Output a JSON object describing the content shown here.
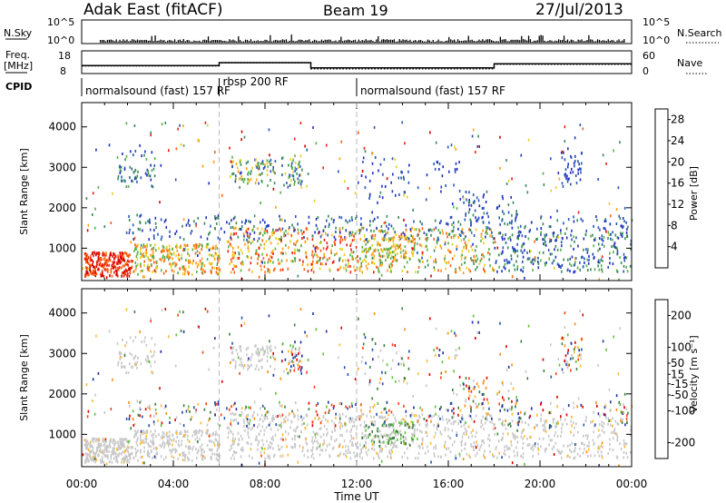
{
  "header": {
    "station": "Adak East (fitACF)",
    "beam": "Beam 19",
    "date": "27/Jul/2013"
  },
  "panels": {
    "nsky_label": "N.Sky",
    "nsky_ticks": [
      "10^5",
      "10^0"
    ],
    "nsearch_label": "N.Search",
    "nsearch_ticks": [
      "10^5",
      "10^0"
    ],
    "freq_label": "Freq.",
    "freq_unit": "[MHz]",
    "freq_ticks": [
      "18",
      "8"
    ],
    "nave_label": "Nave",
    "nave_ticks": [
      "60",
      "0"
    ],
    "cpid_label": "CPID",
    "cpid_segments": [
      {
        "label": "normalsound (fast) 157 RF",
        "start_h": 0,
        "end_h": 6
      },
      {
        "label": "rbsp 200 RF",
        "start_h": 6,
        "end_h": 12
      },
      {
        "label": "normalsound (fast) 157 RF",
        "start_h": 12,
        "end_h": 24
      }
    ],
    "freq_trace": {
      "hours": [
        0,
        6,
        10,
        18,
        24
      ],
      "values_mhz": [
        11.5,
        12.8,
        10.5,
        12.3,
        12.3
      ]
    },
    "nave_trace": {
      "hours": [
        0,
        6,
        10,
        18,
        24
      ],
      "values": [
        20,
        28,
        12,
        24,
        24
      ]
    }
  },
  "colors": {
    "power_scale": [
      "#2030c0",
      "#2856b8",
      "#3a8a5a",
      "#58b048",
      "#e8d020",
      "#ffa010",
      "#ff6010",
      "#e82010",
      "#d00000"
    ],
    "velocity_scale": [
      "#e00000",
      "#ff4010",
      "#ff8c10",
      "#ffb830",
      "#c8c8c8",
      "#c8c8c8",
      "#60c040",
      "#3c8040",
      "#2050b0",
      "#2030a0"
    ],
    "ground_scatter": "#c8c8c8"
  },
  "chart_data": [
    {
      "type": "heatmap",
      "name": "power",
      "ylabel": "Slant Range [km]",
      "xlabel": "Time UT",
      "x_ticks": [
        "00:00",
        "04:00",
        "08:00",
        "12:00",
        "16:00",
        "20:00",
        "00:00"
      ],
      "xlim_hours": [
        0,
        24
      ],
      "y_ticks": [
        1000,
        2000,
        3000,
        4000
      ],
      "ylim": [
        200,
        4600
      ],
      "colorbar_label": "Power [dB]",
      "colorbar_ticks": [
        4,
        8,
        12,
        16,
        20,
        24,
        28
      ],
      "clim": [
        0,
        30
      ]
    },
    {
      "type": "heatmap",
      "name": "velocity",
      "ylabel": "Slant Range [km]",
      "xlabel": "Time UT",
      "x_ticks": [
        "00:00",
        "04:00",
        "08:00",
        "12:00",
        "16:00",
        "20:00",
        "00:00"
      ],
      "xlim_hours": [
        0,
        24
      ],
      "y_ticks": [
        1000,
        2000,
        3000,
        4000
      ],
      "ylim": [
        200,
        4600
      ],
      "colorbar_label": "Velocity [m s⁻¹]",
      "colorbar_ticks": [
        -200,
        -100,
        -50,
        -15,
        15,
        50,
        100,
        200
      ],
      "clim": [
        -250,
        250
      ]
    }
  ]
}
